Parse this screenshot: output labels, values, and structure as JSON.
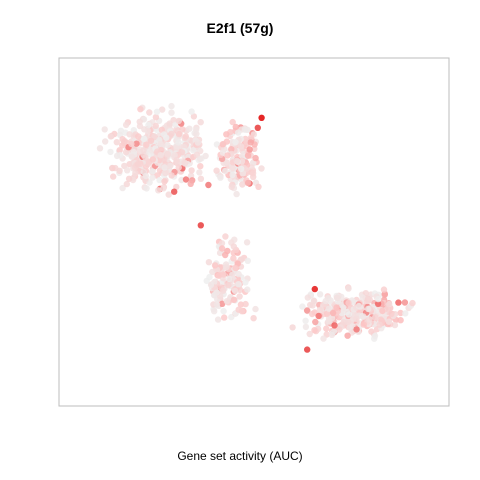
{
  "chart_data": {
    "type": "scatter",
    "title": "E2f1 (57g)",
    "xlabel": "Gene set activity (AUC)",
    "ylabel": "",
    "axes_visible": false,
    "grid": false,
    "color_scale": {
      "low": "#eeeeee",
      "mid": "#fcc7c7",
      "high": "#e00000"
    },
    "clusters": [
      {
        "region": "upper-left lobe",
        "center": [
          2.5,
          7.4
        ],
        "spread": [
          1.7,
          1.5
        ],
        "count": 420,
        "seed": 11,
        "activity_mean": 0.22
      },
      {
        "region": "upper-middle arm",
        "center": [
          4.6,
          7.2
        ],
        "spread": [
          0.8,
          1.3
        ],
        "count": 150,
        "seed": 23,
        "activity_mean": 0.32
      },
      {
        "region": "stem",
        "center": [
          4.3,
          3.6
        ],
        "spread": [
          0.8,
          1.6
        ],
        "count": 150,
        "seed": 37,
        "activity_mean": 0.28
      },
      {
        "region": "lower-right lobe",
        "center": [
          7.6,
          2.6
        ],
        "spread": [
          1.8,
          0.9
        ],
        "count": 330,
        "seed": 41,
        "activity_mean": 0.3
      }
    ],
    "highlighted_points": [
      {
        "x": 5.2,
        "y": 8.4,
        "v": 1.0
      },
      {
        "x": 5.1,
        "y": 8.1,
        "v": 0.85
      },
      {
        "x": 2.9,
        "y": 6.2,
        "v": 0.8
      },
      {
        "x": 3.6,
        "y": 5.2,
        "v": 0.85
      },
      {
        "x": 6.6,
        "y": 3.3,
        "v": 0.95
      },
      {
        "x": 6.4,
        "y": 1.5,
        "v": 0.85
      },
      {
        "x": 8.8,
        "y": 2.9,
        "v": 0.75
      },
      {
        "x": 3.8,
        "y": 6.4,
        "v": 0.7
      },
      {
        "x": 6.7,
        "y": 2.5,
        "v": 0.7
      },
      {
        "x": 7.7,
        "y": 2.1,
        "v": 0.7
      }
    ],
    "xlim": [
      0,
      10
    ],
    "ylim": [
      0,
      10
    ]
  }
}
